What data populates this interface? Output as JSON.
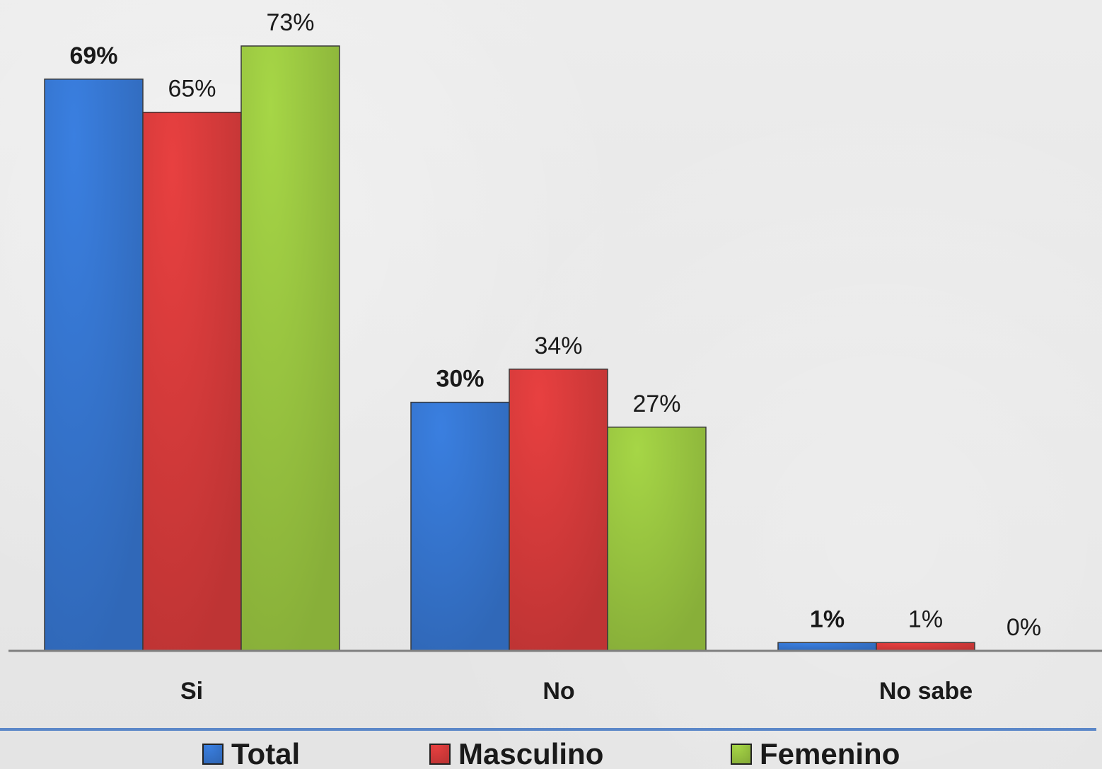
{
  "chart_data": {
    "type": "bar",
    "categories": [
      "Si",
      "No",
      "No sabe"
    ],
    "series": [
      {
        "name": "Total",
        "values": [
          69,
          30,
          1
        ],
        "labels": [
          "69%",
          "30%",
          "1%"
        ],
        "bold_labels": true,
        "color": "#3a7fe0"
      },
      {
        "name": "Masculino",
        "values": [
          65,
          34,
          1
        ],
        "labels": [
          "65%",
          "34%",
          "1%"
        ],
        "bold_labels": false,
        "color": "#e84040"
      },
      {
        "name": "Femenino",
        "values": [
          73,
          27,
          0
        ],
        "labels": [
          "73%",
          "27%",
          "0%"
        ],
        "bold_labels": false,
        "color": "#a6d646"
      }
    ],
    "ylim": [
      0,
      73
    ],
    "grid": false,
    "legend_position": "bottom",
    "baseline_color": "#7f7f7f",
    "divider_color": "#5b87c8"
  }
}
